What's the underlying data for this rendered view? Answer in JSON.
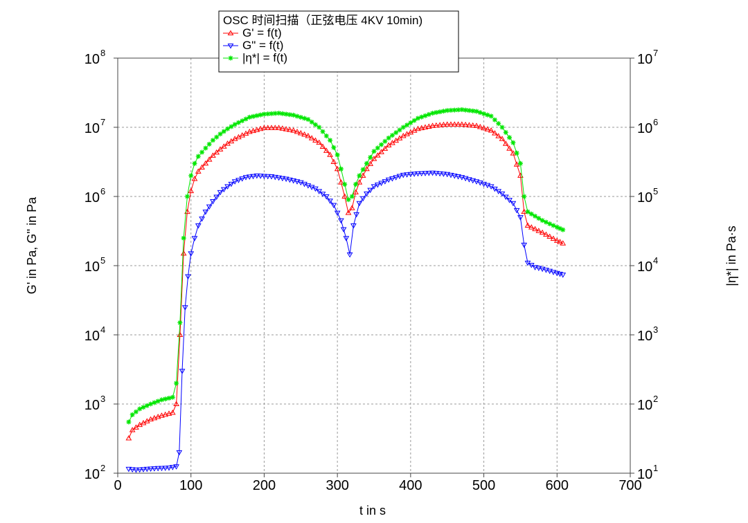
{
  "chart_data": {
    "type": "line",
    "title": "OSC 时间扫描（正弦电压 4KV 10min)",
    "xlabel": "t in s",
    "ylabel": "G' in Pa, G'' in Pa",
    "y2label": "|η*| in Pa·s",
    "x_ticks": [
      "0",
      "100",
      "200",
      "300",
      "400",
      "500",
      "600",
      "700"
    ],
    "y_ticks": [
      {
        "base": "10",
        "exp": "2"
      },
      {
        "base": "10",
        "exp": "3"
      },
      {
        "base": "10",
        "exp": "4"
      },
      {
        "base": "10",
        "exp": "5"
      },
      {
        "base": "10",
        "exp": "6"
      },
      {
        "base": "10",
        "exp": "7"
      },
      {
        "base": "10",
        "exp": "8"
      }
    ],
    "y2_ticks": [
      {
        "base": "10",
        "exp": "1"
      },
      {
        "base": "10",
        "exp": "2"
      },
      {
        "base": "10",
        "exp": "3"
      },
      {
        "base": "10",
        "exp": "4"
      },
      {
        "base": "10",
        "exp": "5"
      },
      {
        "base": "10",
        "exp": "6"
      },
      {
        "base": "10",
        "exp": "7"
      }
    ],
    "xlim": [
      0,
      700
    ],
    "ylim": [
      100,
      100000000
    ],
    "y2lim": [
      10,
      10000000
    ],
    "yscale": "log",
    "grid": true,
    "legend_position": "top-center",
    "series": [
      {
        "name": "G' = f(t)",
        "color": "#ff0000",
        "marker": "triangle-up",
        "axis": "left",
        "x": [
          15,
          20,
          30,
          45,
          60,
          75,
          80,
          85,
          90,
          95,
          100,
          105,
          110,
          120,
          130,
          140,
          150,
          160,
          180,
          200,
          220,
          240,
          260,
          275,
          290,
          300,
          305,
          310,
          315,
          320,
          325,
          330,
          340,
          350,
          370,
          390,
          410,
          430,
          450,
          470,
          490,
          510,
          525,
          540,
          550,
          555,
          560,
          580,
          600,
          608
        ],
        "y": [
          320,
          420,
          500,
          600,
          680,
          750,
          1000,
          10000,
          150000,
          600000,
          1200000,
          1800000,
          2300000,
          3000000,
          3900000,
          4800000,
          5800000,
          6800000,
          8600000,
          9800000,
          9800000,
          9000000,
          7500000,
          6000000,
          4000000,
          2500000,
          1600000,
          1000000,
          580000,
          680000,
          1150000,
          1600000,
          2500000,
          3500000,
          5500000,
          7500000,
          9500000,
          10500000,
          11000000,
          11000000,
          10500000,
          9000000,
          6800000,
          4200000,
          2000000,
          600000,
          380000,
          300000,
          230000,
          210000
        ]
      },
      {
        "name": "G\" = f(t)",
        "color": "#0000ff",
        "marker": "triangle-down",
        "axis": "left",
        "x": [
          15,
          25,
          40,
          55,
          70,
          80,
          84,
          88,
          92,
          96,
          100,
          105,
          110,
          120,
          130,
          140,
          150,
          160,
          175,
          190,
          210,
          230,
          250,
          270,
          285,
          295,
          305,
          312,
          317,
          322,
          330,
          340,
          350,
          370,
          390,
          410,
          430,
          450,
          470,
          490,
          510,
          525,
          540,
          550,
          555,
          560,
          570,
          580,
          600,
          608
        ],
        "y": [
          115,
          112,
          115,
          118,
          120,
          125,
          200,
          3000,
          25000,
          70000,
          150000,
          250000,
          380000,
          600000,
          850000,
          1150000,
          1400000,
          1650000,
          1900000,
          2000000,
          1950000,
          1800000,
          1600000,
          1300000,
          1000000,
          750000,
          450000,
          250000,
          145000,
          380000,
          800000,
          1100000,
          1400000,
          1750000,
          2050000,
          2150000,
          2200000,
          2100000,
          1900000,
          1650000,
          1400000,
          1100000,
          800000,
          500000,
          200000,
          110000,
          95000,
          90000,
          78000,
          74000
        ]
      },
      {
        "name": "|η*| = f(t)",
        "color": "#00e600",
        "marker": "asterisk",
        "axis": "right",
        "x": [
          15,
          20,
          30,
          45,
          60,
          75,
          80,
          85,
          90,
          95,
          100,
          105,
          110,
          120,
          130,
          140,
          150,
          160,
          180,
          200,
          220,
          240,
          260,
          275,
          290,
          300,
          305,
          310,
          315,
          320,
          325,
          330,
          340,
          350,
          370,
          390,
          410,
          430,
          450,
          470,
          490,
          510,
          525,
          540,
          550,
          555,
          560,
          580,
          600,
          608
        ],
        "y": [
          55,
          70,
          85,
          100,
          115,
          125,
          200,
          1500,
          25000,
          100000,
          200000,
          300000,
          380000,
          500000,
          650000,
          800000,
          950000,
          1100000,
          1400000,
          1550000,
          1600000,
          1500000,
          1300000,
          1000000,
          650000,
          400000,
          250000,
          150000,
          90000,
          100000,
          150000,
          200000,
          300000,
          450000,
          700000,
          1000000,
          1350000,
          1600000,
          1750000,
          1800000,
          1700000,
          1450000,
          1000000,
          600000,
          300000,
          100000,
          60000,
          45000,
          36000,
          33000
        ]
      }
    ]
  }
}
